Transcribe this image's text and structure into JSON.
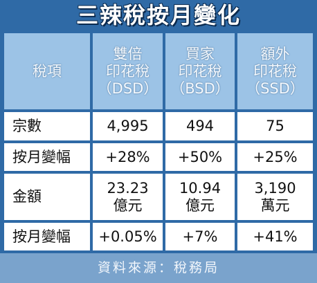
{
  "title": "三辣稅按月變化",
  "table": {
    "header": [
      [
        "稅項"
      ],
      [
        "雙倍",
        "印花稅",
        "（DSD）"
      ],
      [
        "買家",
        "印花稅",
        "（BSD）"
      ],
      [
        "額外",
        "印花稅",
        "（SSD）"
      ]
    ],
    "rows": [
      [
        [
          "宗數"
        ],
        [
          "4,995"
        ],
        [
          "494"
        ],
        [
          "75"
        ]
      ],
      [
        [
          "按月變幅"
        ],
        [
          "+28%"
        ],
        [
          "+50%"
        ],
        [
          "+25%"
        ]
      ],
      [
        [
          "金額"
        ],
        [
          "23.23",
          "億元"
        ],
        [
          "10.94",
          "億元"
        ],
        [
          "3,190",
          "萬元"
        ]
      ],
      [
        [
          "按月變幅"
        ],
        [
          "+0.05%"
        ],
        [
          "+7%"
        ],
        [
          "+41%"
        ]
      ]
    ]
  },
  "footer": "資料來源：稅務局"
}
